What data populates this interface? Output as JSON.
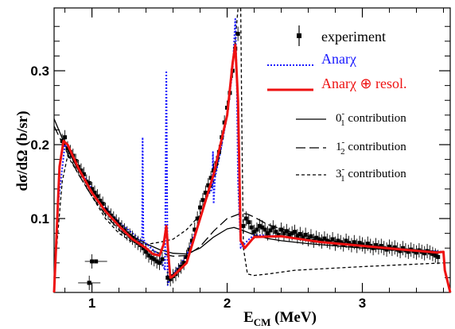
{
  "chart_data": {
    "type": "line",
    "xlabel": "E",
    "xlabel_sub": "CM",
    "xlabel_unit": " (MeV)",
    "ylabel": "dσ/dΩ (b/sr)",
    "xlim": [
      0.72,
      3.65
    ],
    "ylim": [
      0,
      0.385
    ],
    "x_ticks": [
      1,
      2,
      3
    ],
    "y_ticks": [
      0.1,
      0.2,
      0.3
    ],
    "y_tick_labels": [
      "0.1",
      "0.2",
      "0.3"
    ],
    "x_tick_labels": [
      "1",
      "2",
      "3"
    ],
    "legend": {
      "experiment": "experiment",
      "anar": "Anarχ",
      "anar_resol": "Anarχ ⊕ resol.",
      "c0_label": "0",
      "c0_sup": "-",
      "c0_sub": "1",
      "c0_text": " contribution",
      "c1_label": "1",
      "c1_sup": "-",
      "c1_sub": "2",
      "c1_text": " contribution",
      "c3_label": "3",
      "c3_sup": "-",
      "c3_sub": "1",
      "c3_text": " contribution"
    },
    "colors": {
      "anar": "#1a1aff",
      "resol": "#ee1111",
      "black": "#000000"
    },
    "series": [
      {
        "key": "c0",
        "style": "solid-thin",
        "x": [
          0.72,
          0.8,
          0.9,
          1.0,
          1.1,
          1.2,
          1.3,
          1.4,
          1.5,
          1.6,
          1.7,
          1.8,
          1.9,
          2.0,
          2.05,
          2.1,
          2.2,
          2.3,
          2.4,
          2.6,
          2.8,
          3.0,
          3.2,
          3.4,
          3.6
        ],
        "y": [
          0.235,
          0.2,
          0.165,
          0.135,
          0.11,
          0.09,
          0.076,
          0.066,
          0.058,
          0.053,
          0.052,
          0.06,
          0.075,
          0.086,
          0.088,
          0.085,
          0.078,
          0.073,
          0.07,
          0.066,
          0.063,
          0.06,
          0.058,
          0.056,
          0.054
        ]
      },
      {
        "key": "c1",
        "style": "long-dash",
        "x": [
          0.72,
          0.8,
          0.9,
          1.0,
          1.1,
          1.2,
          1.3,
          1.4,
          1.5,
          1.6,
          1.7,
          1.8,
          1.9,
          2.0,
          2.1,
          2.15,
          2.2,
          2.3,
          2.5,
          2.7,
          3.0,
          3.3,
          3.6
        ],
        "y": [
          0.225,
          0.195,
          0.16,
          0.13,
          0.105,
          0.085,
          0.07,
          0.06,
          0.053,
          0.049,
          0.05,
          0.062,
          0.083,
          0.1,
          0.107,
          0.106,
          0.102,
          0.092,
          0.08,
          0.072,
          0.064,
          0.059,
          0.055
        ]
      },
      {
        "key": "c3",
        "style": "short-dash",
        "x": [
          0.72,
          0.78,
          0.82,
          0.9,
          1.0,
          1.1,
          1.2,
          1.3,
          1.4,
          1.5,
          1.6,
          1.7,
          1.8,
          1.9,
          1.95,
          2.0,
          2.05,
          2.08,
          2.1,
          2.11,
          2.12,
          2.15,
          2.2,
          2.3,
          2.5,
          3.0,
          3.6
        ],
        "y": [
          0.02,
          0.15,
          0.185,
          0.16,
          0.13,
          0.1,
          0.08,
          0.068,
          0.065,
          0.068,
          0.072,
          0.085,
          0.105,
          0.15,
          0.19,
          0.24,
          0.32,
          0.385,
          0.385,
          0.2,
          0.06,
          0.025,
          0.023,
          0.025,
          0.03,
          0.035,
          0.04
        ]
      },
      {
        "key": "anar",
        "style": "dotted",
        "x": [
          0.75,
          0.8,
          0.9,
          1.0,
          1.1,
          1.2,
          1.3,
          1.35,
          1.37,
          1.375,
          1.38,
          1.39,
          1.4,
          1.5,
          1.54,
          1.55,
          1.56,
          1.57,
          1.6,
          1.7,
          1.8,
          1.85,
          1.89,
          1.895,
          1.9,
          1.91,
          1.95,
          2.0,
          2.04,
          2.06,
          2.07,
          2.08,
          2.1,
          2.15,
          2.2,
          2.4,
          2.7,
          3.0,
          3.3,
          3.6
        ],
        "y": [
          0.12,
          0.2,
          0.17,
          0.14,
          0.115,
          0.095,
          0.08,
          0.072,
          0.06,
          0.21,
          0.075,
          0.068,
          0.066,
          0.05,
          0.03,
          0.3,
          0.01,
          0.015,
          0.025,
          0.05,
          0.1,
          0.13,
          0.14,
          0.19,
          0.12,
          0.155,
          0.19,
          0.24,
          0.3,
          0.37,
          0.3,
          0.15,
          0.06,
          0.07,
          0.078,
          0.076,
          0.068,
          0.064,
          0.058,
          0.055
        ]
      },
      {
        "key": "resol",
        "style": "thick-red",
        "x": [
          0.72,
          0.76,
          0.79,
          0.82,
          0.9,
          1.0,
          1.1,
          1.2,
          1.3,
          1.4,
          1.45,
          1.5,
          1.53,
          1.55,
          1.57,
          1.58,
          1.6,
          1.7,
          1.8,
          1.9,
          2.0,
          2.04,
          2.06,
          2.08,
          2.1,
          2.13,
          2.2,
          2.4,
          2.7,
          3.0,
          3.3,
          3.55,
          3.6,
          3.61,
          3.65
        ],
        "y": [
          0.0,
          0.17,
          0.205,
          0.2,
          0.168,
          0.135,
          0.11,
          0.09,
          0.072,
          0.06,
          0.052,
          0.05,
          0.065,
          0.09,
          0.04,
          0.02,
          0.022,
          0.04,
          0.1,
          0.16,
          0.24,
          0.31,
          0.335,
          0.26,
          0.07,
          0.06,
          0.075,
          0.076,
          0.068,
          0.063,
          0.058,
          0.054,
          0.055,
          0.03,
          0.0
        ]
      }
    ],
    "experiment_points": {
      "x": [
        0.78,
        0.8,
        0.82,
        0.84,
        0.86,
        0.88,
        0.9,
        0.92,
        0.94,
        0.96,
        0.98,
        1.0,
        1.02,
        1.04,
        1.06,
        1.08,
        1.1,
        1.12,
        1.14,
        1.16,
        1.18,
        1.2,
        1.22,
        1.24,
        1.26,
        1.28,
        1.3,
        1.32,
        1.34,
        1.36,
        1.38,
        1.4,
        1.42,
        1.44,
        1.46,
        1.48,
        1.5,
        1.52,
        1.56,
        1.58,
        1.6,
        1.62,
        1.64,
        1.66,
        1.68,
        1.7,
        1.72,
        1.74,
        1.76,
        1.78,
        1.8,
        1.82,
        1.84,
        1.86,
        1.88,
        1.9,
        1.92,
        1.94,
        1.96,
        1.98,
        2.0,
        2.02,
        2.04,
        2.06,
        2.08,
        2.12,
        2.14,
        2.16,
        2.18,
        2.2,
        2.22,
        2.24,
        2.26,
        2.28,
        2.3,
        2.32,
        2.34,
        2.36,
        2.38,
        2.4,
        2.42,
        2.44,
        2.46,
        2.48,
        2.5,
        2.52,
        2.54,
        2.56,
        2.58,
        2.6,
        2.62,
        2.64,
        2.66,
        2.68,
        2.7,
        2.72,
        2.74,
        2.76,
        2.78,
        2.8,
        2.82,
        2.84,
        2.86,
        2.88,
        2.9,
        2.92,
        2.94,
        2.96,
        2.98,
        3.0,
        3.02,
        3.04,
        3.06,
        3.08,
        3.1,
        3.12,
        3.14,
        3.16,
        3.18,
        3.2,
        3.22,
        3.24,
        3.26,
        3.28,
        3.3,
        3.32,
        3.34,
        3.36,
        3.38,
        3.4,
        3.42,
        3.44,
        3.46,
        3.48,
        3.5,
        3.52,
        3.54,
        3.56,
        0.98,
        1.0
      ],
      "y": [
        0.205,
        0.21,
        0.195,
        0.19,
        0.185,
        0.178,
        0.17,
        0.165,
        0.16,
        0.15,
        0.148,
        0.14,
        0.135,
        0.13,
        0.124,
        0.12,
        0.112,
        0.108,
        0.104,
        0.1,
        0.096,
        0.092,
        0.088,
        0.084,
        0.08,
        0.077,
        0.074,
        0.07,
        0.067,
        0.064,
        0.06,
        0.055,
        0.05,
        0.047,
        0.045,
        0.042,
        0.04,
        0.045,
        0.02,
        0.018,
        0.022,
        0.025,
        0.03,
        0.035,
        0.04,
        0.048,
        0.058,
        0.07,
        0.085,
        0.1,
        0.115,
        0.125,
        0.135,
        0.145,
        0.155,
        0.165,
        0.175,
        0.19,
        0.21,
        0.23,
        0.25,
        0.27,
        0.3,
        0.33,
        0.35,
        0.09,
        0.1,
        0.095,
        0.088,
        0.082,
        0.085,
        0.09,
        0.088,
        0.085,
        0.08,
        0.084,
        0.088,
        0.082,
        0.078,
        0.085,
        0.08,
        0.083,
        0.078,
        0.08,
        0.082,
        0.076,
        0.079,
        0.074,
        0.078,
        0.072,
        0.076,
        0.07,
        0.074,
        0.072,
        0.069,
        0.073,
        0.07,
        0.068,
        0.072,
        0.066,
        0.07,
        0.068,
        0.065,
        0.07,
        0.067,
        0.064,
        0.068,
        0.063,
        0.067,
        0.065,
        0.062,
        0.066,
        0.063,
        0.06,
        0.064,
        0.061,
        0.063,
        0.06,
        0.058,
        0.062,
        0.059,
        0.061,
        0.058,
        0.056,
        0.06,
        0.057,
        0.055,
        0.058,
        0.056,
        0.054,
        0.057,
        0.055,
        0.053,
        0.056,
        0.054,
        0.052,
        0.05,
        0.048,
        0.013,
        0.042
      ]
    }
  }
}
